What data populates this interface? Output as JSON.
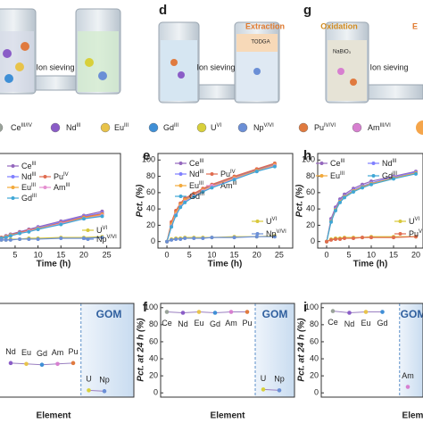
{
  "schematics": {
    "panel_d": "d",
    "panel_g": "g",
    "ion_sieving": [
      "Ion sieving",
      "Ion sieving",
      "Ion sieving"
    ],
    "extraction": "Extraction",
    "todga": "TODGA",
    "oxidation": "Oxidation",
    "nabio3": "NaBiO₃",
    "cut_label": "E"
  },
  "legend": [
    {
      "symbol": "Ce",
      "charge": "III/IV",
      "color": "#9aa39a"
    },
    {
      "symbol": "Nd",
      "charge": "III",
      "color": "#8a5cc7"
    },
    {
      "symbol": "Eu",
      "charge": "III",
      "color": "#e8c34a"
    },
    {
      "symbol": "Gd",
      "charge": "III",
      "color": "#3f8fd6"
    },
    {
      "symbol": "U",
      "charge": "VI",
      "color": "#d8d03a"
    },
    {
      "symbol": "Np",
      "charge": "V/VI",
      "color": "#6b8fd6"
    },
    {
      "symbol": "Pu",
      "charge": "IV/VI",
      "color": "#e07a3f"
    },
    {
      "symbol": "Am",
      "charge": "III/VI",
      "color": "#d77fd0"
    }
  ],
  "chart_data": [
    {
      "type": "line",
      "xlabel": "Time (h)",
      "x": [
        0,
        1,
        2,
        3,
        4,
        6,
        8,
        10,
        15,
        20,
        24
      ],
      "xlim": [
        -2,
        28
      ],
      "xticks": [
        5,
        10,
        15,
        20,
        25
      ],
      "ylim": [
        -8,
        108
      ],
      "series": [
        {
          "name": "Ce",
          "charge": "III",
          "color": "#9467bd",
          "values": [
            0,
            3,
            5,
            7,
            9,
            12,
            15,
            18,
            25,
            32,
            37
          ]
        },
        {
          "name": "Nd",
          "charge": "III",
          "color": "#7f7fff",
          "values": [
            0,
            2,
            4,
            6,
            8,
            11,
            14,
            17,
            24,
            31,
            35
          ]
        },
        {
          "name": "Pu",
          "charge": "IV",
          "color": "#e06c4f",
          "values": [
            0,
            3,
            5,
            6,
            8,
            11,
            14,
            16,
            23,
            30,
            34
          ]
        },
        {
          "name": "Eu",
          "charge": "III",
          "color": "#f2a93b",
          "values": [
            0,
            2,
            4,
            6,
            8,
            10,
            13,
            16,
            22,
            29,
            33
          ]
        },
        {
          "name": "Am",
          "charge": "III",
          "color": "#e58fd0",
          "values": [
            0,
            2,
            3,
            5,
            7,
            10,
            13,
            15,
            22,
            28,
            32
          ]
        },
        {
          "name": "Gd",
          "charge": "III",
          "color": "#3fa7d6",
          "values": [
            0,
            2,
            4,
            5,
            7,
            10,
            12,
            15,
            21,
            28,
            31
          ]
        },
        {
          "name": "U",
          "charge": "VI",
          "color": "#d8c73a",
          "values": [
            0,
            1,
            2,
            2,
            3,
            3,
            4,
            4,
            5,
            5,
            6
          ]
        },
        {
          "name": "Np",
          "charge": "V/VI",
          "color": "#6b8fd6",
          "values": [
            0,
            1,
            2,
            2,
            2,
            3,
            3,
            3,
            4,
            4,
            5
          ]
        }
      ]
    },
    {
      "type": "line",
      "letter": "e",
      "xlabel": "Time (h)",
      "ylabel": "Pct. (%)",
      "x": [
        0,
        1,
        2,
        3,
        4,
        6,
        8,
        10,
        15,
        20,
        24
      ],
      "xlim": [
        -2,
        28
      ],
      "xticks": [
        0,
        5,
        10,
        15,
        20,
        25
      ],
      "ylim": [
        -8,
        108
      ],
      "yticks": [
        0,
        20,
        40,
        60,
        80,
        100
      ],
      "series": [
        {
          "name": "Ce",
          "charge": "III",
          "color": "#9467bd",
          "values": [
            0,
            22,
            36,
            46,
            52,
            58,
            64,
            69,
            79,
            88,
            95
          ]
        },
        {
          "name": "Nd",
          "charge": "III",
          "color": "#7f7fff",
          "values": [
            0,
            20,
            34,
            44,
            50,
            57,
            63,
            68,
            78,
            87,
            94
          ]
        },
        {
          "name": "Pu",
          "charge": "IV",
          "color": "#e06c4f",
          "values": [
            0,
            24,
            38,
            47,
            53,
            59,
            65,
            70,
            80,
            89,
            96
          ]
        },
        {
          "name": "Eu",
          "charge": "III",
          "color": "#f2a93b",
          "values": [
            0,
            21,
            35,
            45,
            51,
            57,
            63,
            68,
            78,
            87,
            94
          ]
        },
        {
          "name": "Am",
          "charge": "III",
          "color": "#e58fd0",
          "values": [
            0,
            19,
            33,
            43,
            49,
            56,
            62,
            67,
            77,
            86,
            93
          ]
        },
        {
          "name": "Gd",
          "charge": "III",
          "color": "#3fa7d6",
          "values": [
            0,
            18,
            32,
            42,
            48,
            55,
            61,
            66,
            76,
            86,
            92
          ]
        },
        {
          "name": "U",
          "charge": "VI",
          "color": "#d8c73a",
          "values": [
            0,
            3,
            4,
            4,
            5,
            5,
            5,
            5,
            6,
            6,
            7
          ]
        },
        {
          "name": "Np",
          "charge": "V/VI",
          "color": "#6b8fd6",
          "values": [
            0,
            2,
            3,
            3,
            4,
            4,
            4,
            5,
            5,
            6,
            6
          ]
        }
      ]
    },
    {
      "type": "line",
      "letter": "h",
      "xlabel": "Time (h)",
      "ylabel": "Pct. (%)",
      "x": [
        0,
        1,
        2,
        3,
        4,
        6,
        8,
        10,
        15,
        20
      ],
      "xlim": [
        -2,
        21.6
      ],
      "xticks": [
        0,
        5,
        10,
        15,
        20
      ],
      "ylim": [
        -8,
        108
      ],
      "yticks": [
        0,
        20,
        40,
        60,
        80,
        100
      ],
      "series": [
        {
          "name": "Ce",
          "charge": "III",
          "color": "#9467bd",
          "values": [
            0,
            28,
            42,
            52,
            58,
            65,
            70,
            74,
            80,
            86
          ]
        },
        {
          "name": "Nd",
          "charge": "III",
          "color": "#7f7fff",
          "values": [
            0,
            26,
            40,
            50,
            56,
            63,
            68,
            72,
            79,
            85
          ]
        },
        {
          "name": "Eu",
          "charge": "III",
          "color": "#f2a93b",
          "values": [
            0,
            25,
            39,
            49,
            55,
            62,
            67,
            71,
            78,
            84
          ]
        },
        {
          "name": "Gd",
          "charge": "III",
          "color": "#3fa7d6",
          "values": [
            0,
            24,
            38,
            48,
            54,
            61,
            66,
            70,
            77,
            83
          ]
        },
        {
          "name": "U",
          "charge": "VI",
          "color": "#d8c73a",
          "values": [
            0,
            3,
            4,
            4,
            5,
            5,
            5,
            6,
            6,
            6
          ]
        },
        {
          "name": "Pu",
          "charge": "V",
          "color": "#e06c4f",
          "values": [
            0,
            2,
            3,
            3,
            4,
            4,
            5,
            5,
            5,
            6
          ]
        }
      ]
    },
    {
      "type": "dot",
      "xlabel": "Element",
      "gom": "GOM",
      "categories": [
        "Nd",
        "Eu",
        "Gd",
        "Am",
        "Pu",
        "U",
        "Np"
      ],
      "values": [
        35,
        34,
        33,
        34,
        35,
        3,
        2
      ],
      "colors": [
        "#8a5cc7",
        "#e8c34a",
        "#3f8fd6",
        "#d77fd0",
        "#e07a3f",
        "#d8d03a",
        "#6b8fd6"
      ],
      "ylim": [
        -5,
        105
      ]
    },
    {
      "type": "dot",
      "letter": "f",
      "xlabel": "Element",
      "ylabel": "Pct. at 24 h (%)",
      "gom": "GOM",
      "categories": [
        "Ce",
        "Nd",
        "Eu",
        "Gd",
        "Am",
        "Pu",
        "U",
        "Np"
      ],
      "values": [
        95,
        94,
        95,
        94,
        95,
        95,
        4,
        3
      ],
      "colors": [
        "#9aa39a",
        "#8a5cc7",
        "#e8c34a",
        "#3f8fd6",
        "#d77fd0",
        "#e07a3f",
        "#d8d03a",
        "#6b8fd6"
      ],
      "ylim": [
        -5,
        105
      ],
      "yticks": [
        0,
        20,
        40,
        60,
        80,
        100
      ]
    },
    {
      "type": "dot",
      "letter": "i",
      "xlabel": "Element",
      "ylabel": "Pct. at 24 h (%)",
      "gom": "GOM",
      "categories": [
        "Ce",
        "Nd",
        "Eu",
        "Gd",
        "Am"
      ],
      "values": [
        96,
        94,
        95,
        95,
        7
      ],
      "colors": [
        "#9aa39a",
        "#8a5cc7",
        "#e8c34a",
        "#3f8fd6",
        "#d77fd0"
      ],
      "ylim": [
        -5,
        105
      ],
      "yticks": [
        0,
        20,
        40,
        60,
        80,
        100
      ]
    }
  ]
}
